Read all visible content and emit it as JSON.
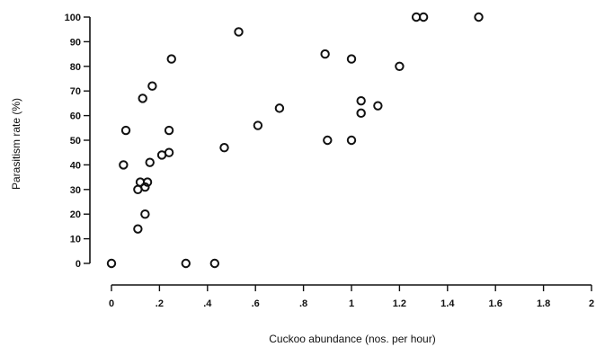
{
  "chart_data": {
    "type": "scatter",
    "title": "",
    "xlabel": "Cuckoo abundance (nos. per hour)",
    "ylabel": "Parasitism rate (%)",
    "xlim": [
      0,
      2
    ],
    "ylim": [
      0,
      100
    ],
    "x_ticks": [
      {
        "value": 0,
        "label": "0"
      },
      {
        "value": 0.2,
        "label": ".2"
      },
      {
        "value": 0.4,
        "label": ".4"
      },
      {
        "value": 0.6,
        "label": ".6"
      },
      {
        "value": 0.8,
        "label": ".8"
      },
      {
        "value": 1.0,
        "label": "1"
      },
      {
        "value": 1.2,
        "label": "1.2"
      },
      {
        "value": 1.4,
        "label": "1.4"
      },
      {
        "value": 1.6,
        "label": "1.6"
      },
      {
        "value": 1.8,
        "label": "1.8"
      },
      {
        "value": 2.0,
        "label": "2"
      }
    ],
    "y_ticks": [
      {
        "value": 0,
        "label": "0"
      },
      {
        "value": 10,
        "label": "10"
      },
      {
        "value": 20,
        "label": "20"
      },
      {
        "value": 30,
        "label": "30"
      },
      {
        "value": 40,
        "label": "40"
      },
      {
        "value": 50,
        "label": "50"
      },
      {
        "value": 60,
        "label": "60"
      },
      {
        "value": 70,
        "label": "70"
      },
      {
        "value": 80,
        "label": "80"
      },
      {
        "value": 90,
        "label": "90"
      },
      {
        "value": 100,
        "label": "100"
      }
    ],
    "grid": false,
    "legend": "none",
    "marker": "open-circle",
    "points": [
      {
        "x": 0.0,
        "y": 0
      },
      {
        "x": 0.05,
        "y": 40
      },
      {
        "x": 0.06,
        "y": 54
      },
      {
        "x": 0.11,
        "y": 14
      },
      {
        "x": 0.11,
        "y": 30
      },
      {
        "x": 0.12,
        "y": 33
      },
      {
        "x": 0.13,
        "y": 67
      },
      {
        "x": 0.14,
        "y": 31
      },
      {
        "x": 0.14,
        "y": 20
      },
      {
        "x": 0.15,
        "y": 33
      },
      {
        "x": 0.16,
        "y": 41
      },
      {
        "x": 0.17,
        "y": 72
      },
      {
        "x": 0.21,
        "y": 44
      },
      {
        "x": 0.24,
        "y": 54
      },
      {
        "x": 0.24,
        "y": 45
      },
      {
        "x": 0.25,
        "y": 83
      },
      {
        "x": 0.31,
        "y": 0
      },
      {
        "x": 0.43,
        "y": 0
      },
      {
        "x": 0.47,
        "y": 47
      },
      {
        "x": 0.53,
        "y": 94
      },
      {
        "x": 0.61,
        "y": 56
      },
      {
        "x": 0.7,
        "y": 63
      },
      {
        "x": 0.89,
        "y": 85
      },
      {
        "x": 0.9,
        "y": 50
      },
      {
        "x": 1.0,
        "y": 83
      },
      {
        "x": 1.0,
        "y": 50
      },
      {
        "x": 1.04,
        "y": 66
      },
      {
        "x": 1.04,
        "y": 61
      },
      {
        "x": 1.11,
        "y": 64
      },
      {
        "x": 1.2,
        "y": 80
      },
      {
        "x": 1.27,
        "y": 100
      },
      {
        "x": 1.3,
        "y": 100
      },
      {
        "x": 1.53,
        "y": 100
      }
    ]
  }
}
